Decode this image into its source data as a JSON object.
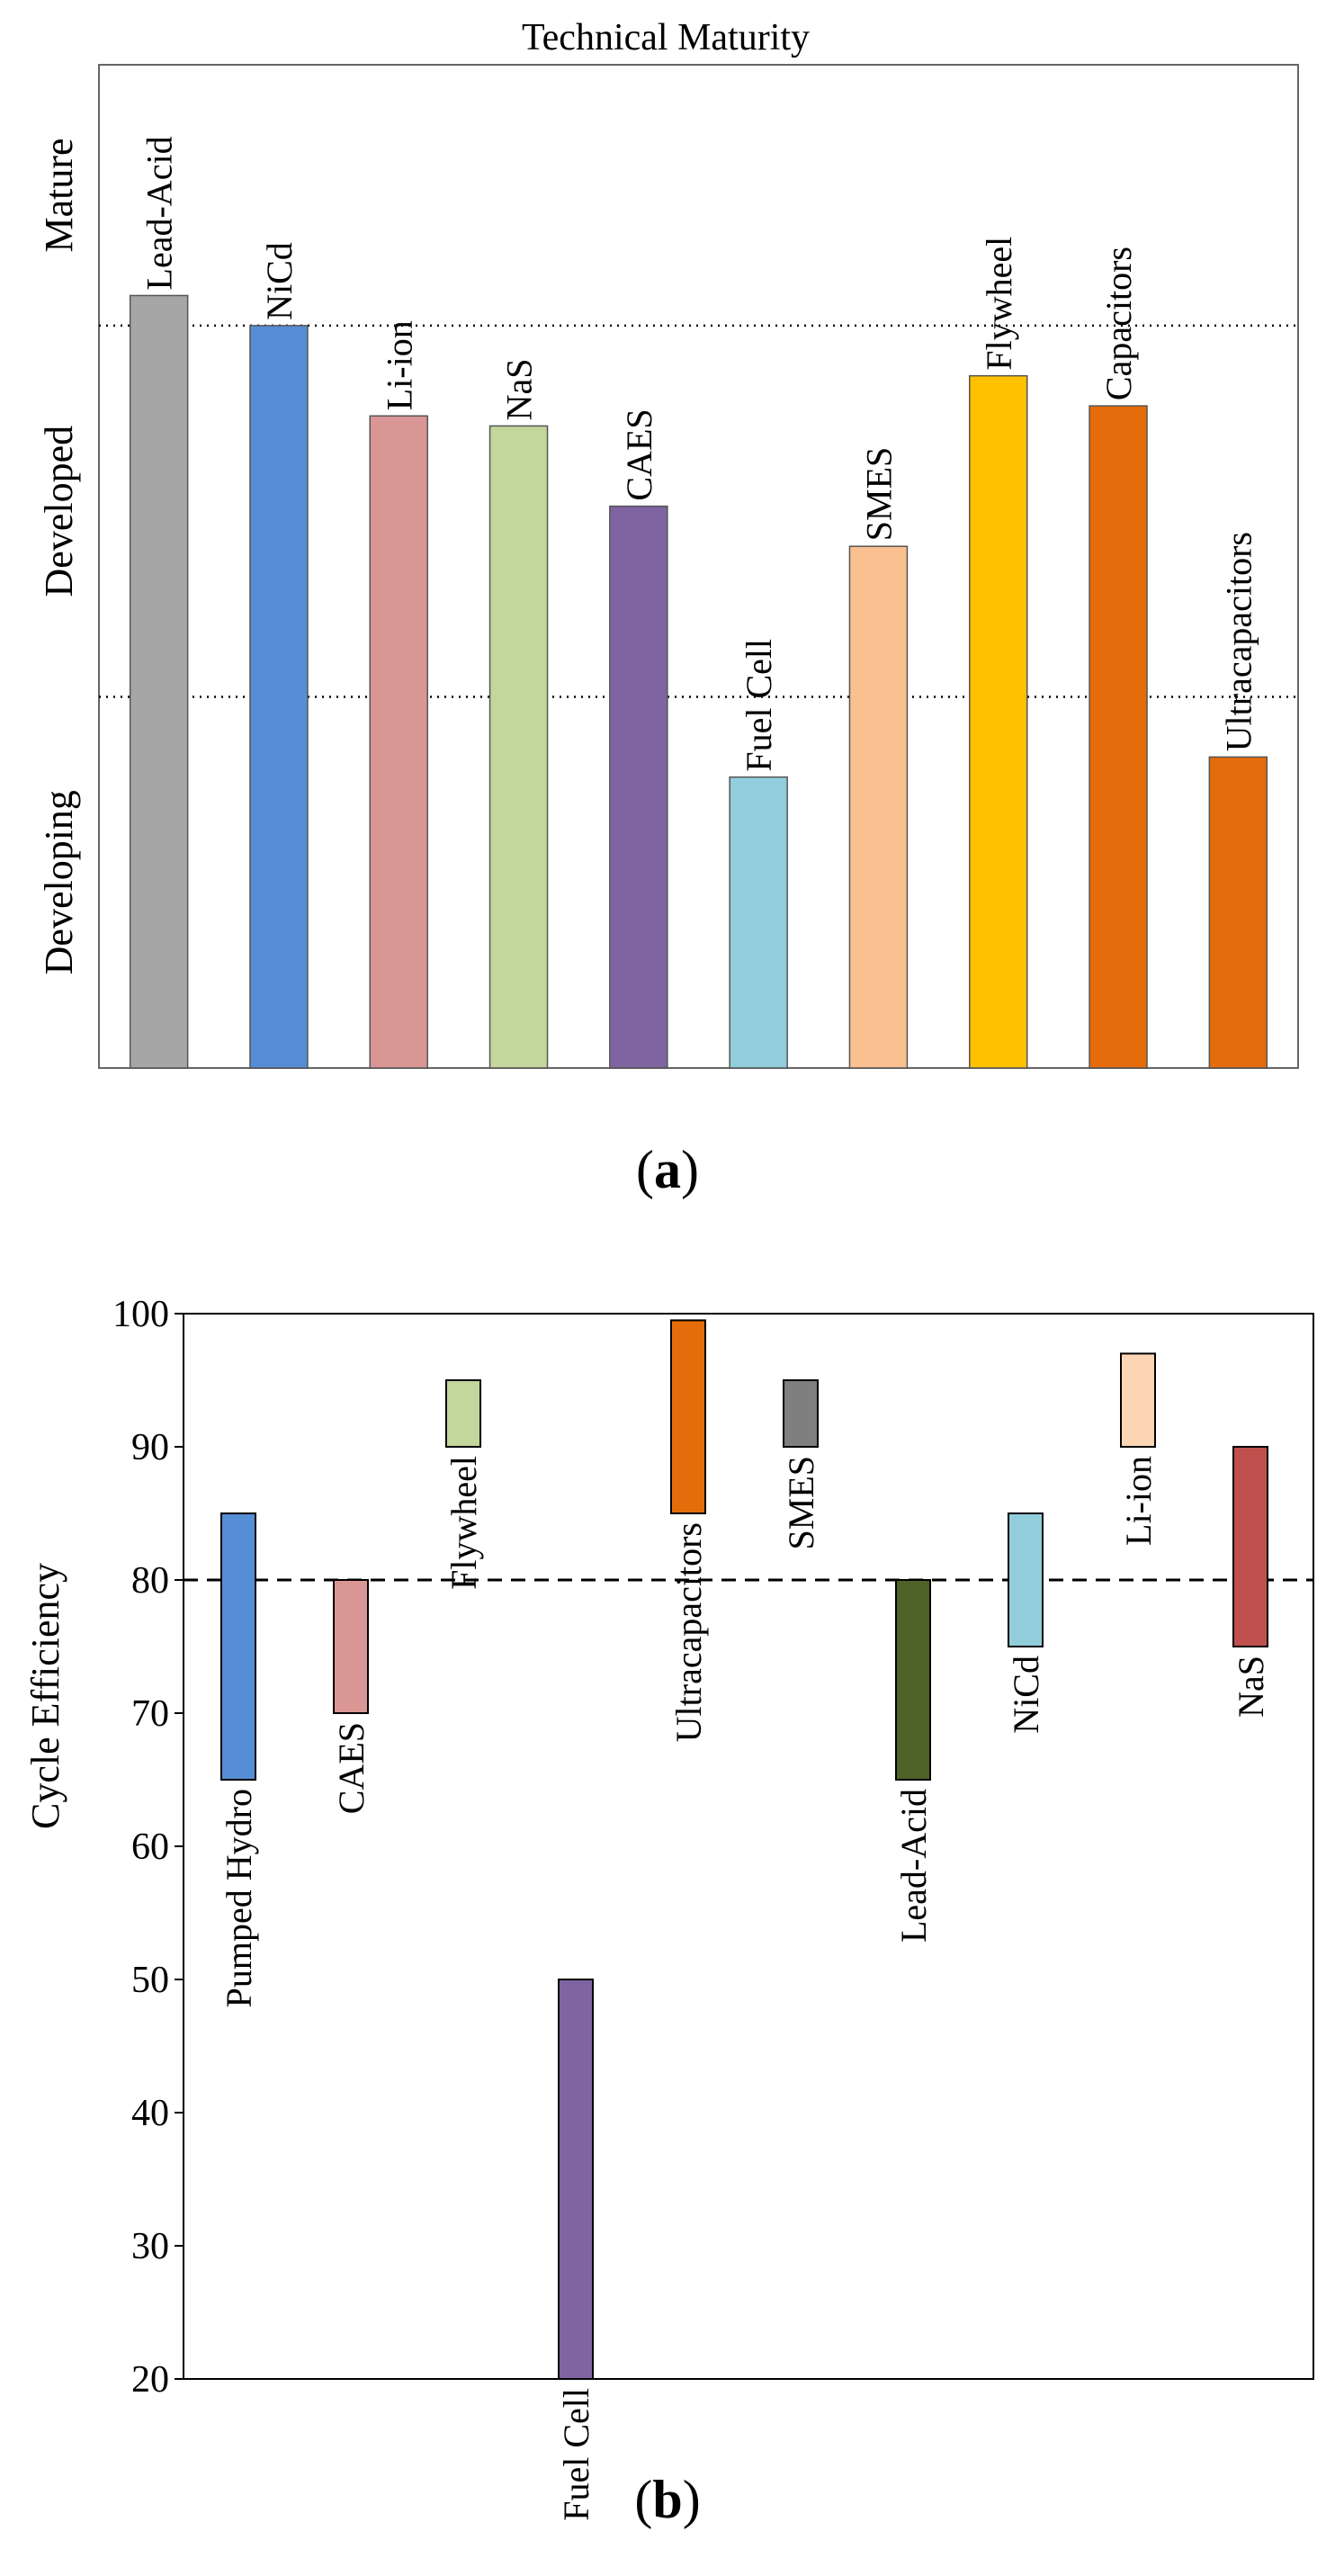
{
  "chart_data": [
    {
      "type": "bar",
      "title": "Technical Maturity",
      "caption_letter": "a",
      "y_levels": [
        "Developing",
        "Developed",
        "Mature"
      ],
      "ylim": [
        0,
        100
      ],
      "thresholds": [
        37,
        74
      ],
      "grid": "dotted threshold lines",
      "legend": "none",
      "categories": [
        "Lead-Acid",
        "NiCd",
        "Li-ion",
        "NaS",
        "CAES",
        "Fuel Cell",
        "SMES",
        "Flywheel",
        "Capacitors",
        "Ultracapacitors"
      ],
      "values": [
        77,
        74,
        65,
        64,
        56,
        29,
        52,
        69,
        66,
        31
      ],
      "colors": [
        "#a6a6a6",
        "#558ed5",
        "#d99694",
        "#c3d69b",
        "#8064a2",
        "#92cddc",
        "#fac090",
        "#ffc000",
        "#e46c0a",
        "#e46c0a"
      ]
    },
    {
      "type": "range-bar",
      "caption_letter": "b",
      "ylabel": "Cycle Efficiency",
      "ylim": [
        20,
        100
      ],
      "yticks": [
        20,
        30,
        40,
        50,
        60,
        70,
        80,
        90,
        100
      ],
      "reference_line": 80,
      "grid": false,
      "legend": "none",
      "categories": [
        "Pumped Hydro",
        "CAES",
        "Flywheel",
        "Fuel Cell",
        "Ultracapacitors",
        "SMES",
        "Lead-Acid",
        "NiCd",
        "Li-ion",
        "NaS"
      ],
      "series": [
        {
          "low": 65,
          "high": 85
        },
        {
          "low": 70,
          "high": 80
        },
        {
          "low": 90,
          "high": 95
        },
        {
          "low": 20,
          "high": 50
        },
        {
          "low": 85,
          "high": 99.5
        },
        {
          "low": 90,
          "high": 95
        },
        {
          "low": 65,
          "high": 80
        },
        {
          "low": 75,
          "high": 85
        },
        {
          "low": 90,
          "high": 97
        },
        {
          "low": 75,
          "high": 90
        }
      ],
      "colors": [
        "#558ed5",
        "#d99694",
        "#c3d69b",
        "#8064a2",
        "#e46c0a",
        "#7f7f7f",
        "#4f6228",
        "#92cddc",
        "#fcd5b5",
        "#c0504d"
      ]
    }
  ]
}
